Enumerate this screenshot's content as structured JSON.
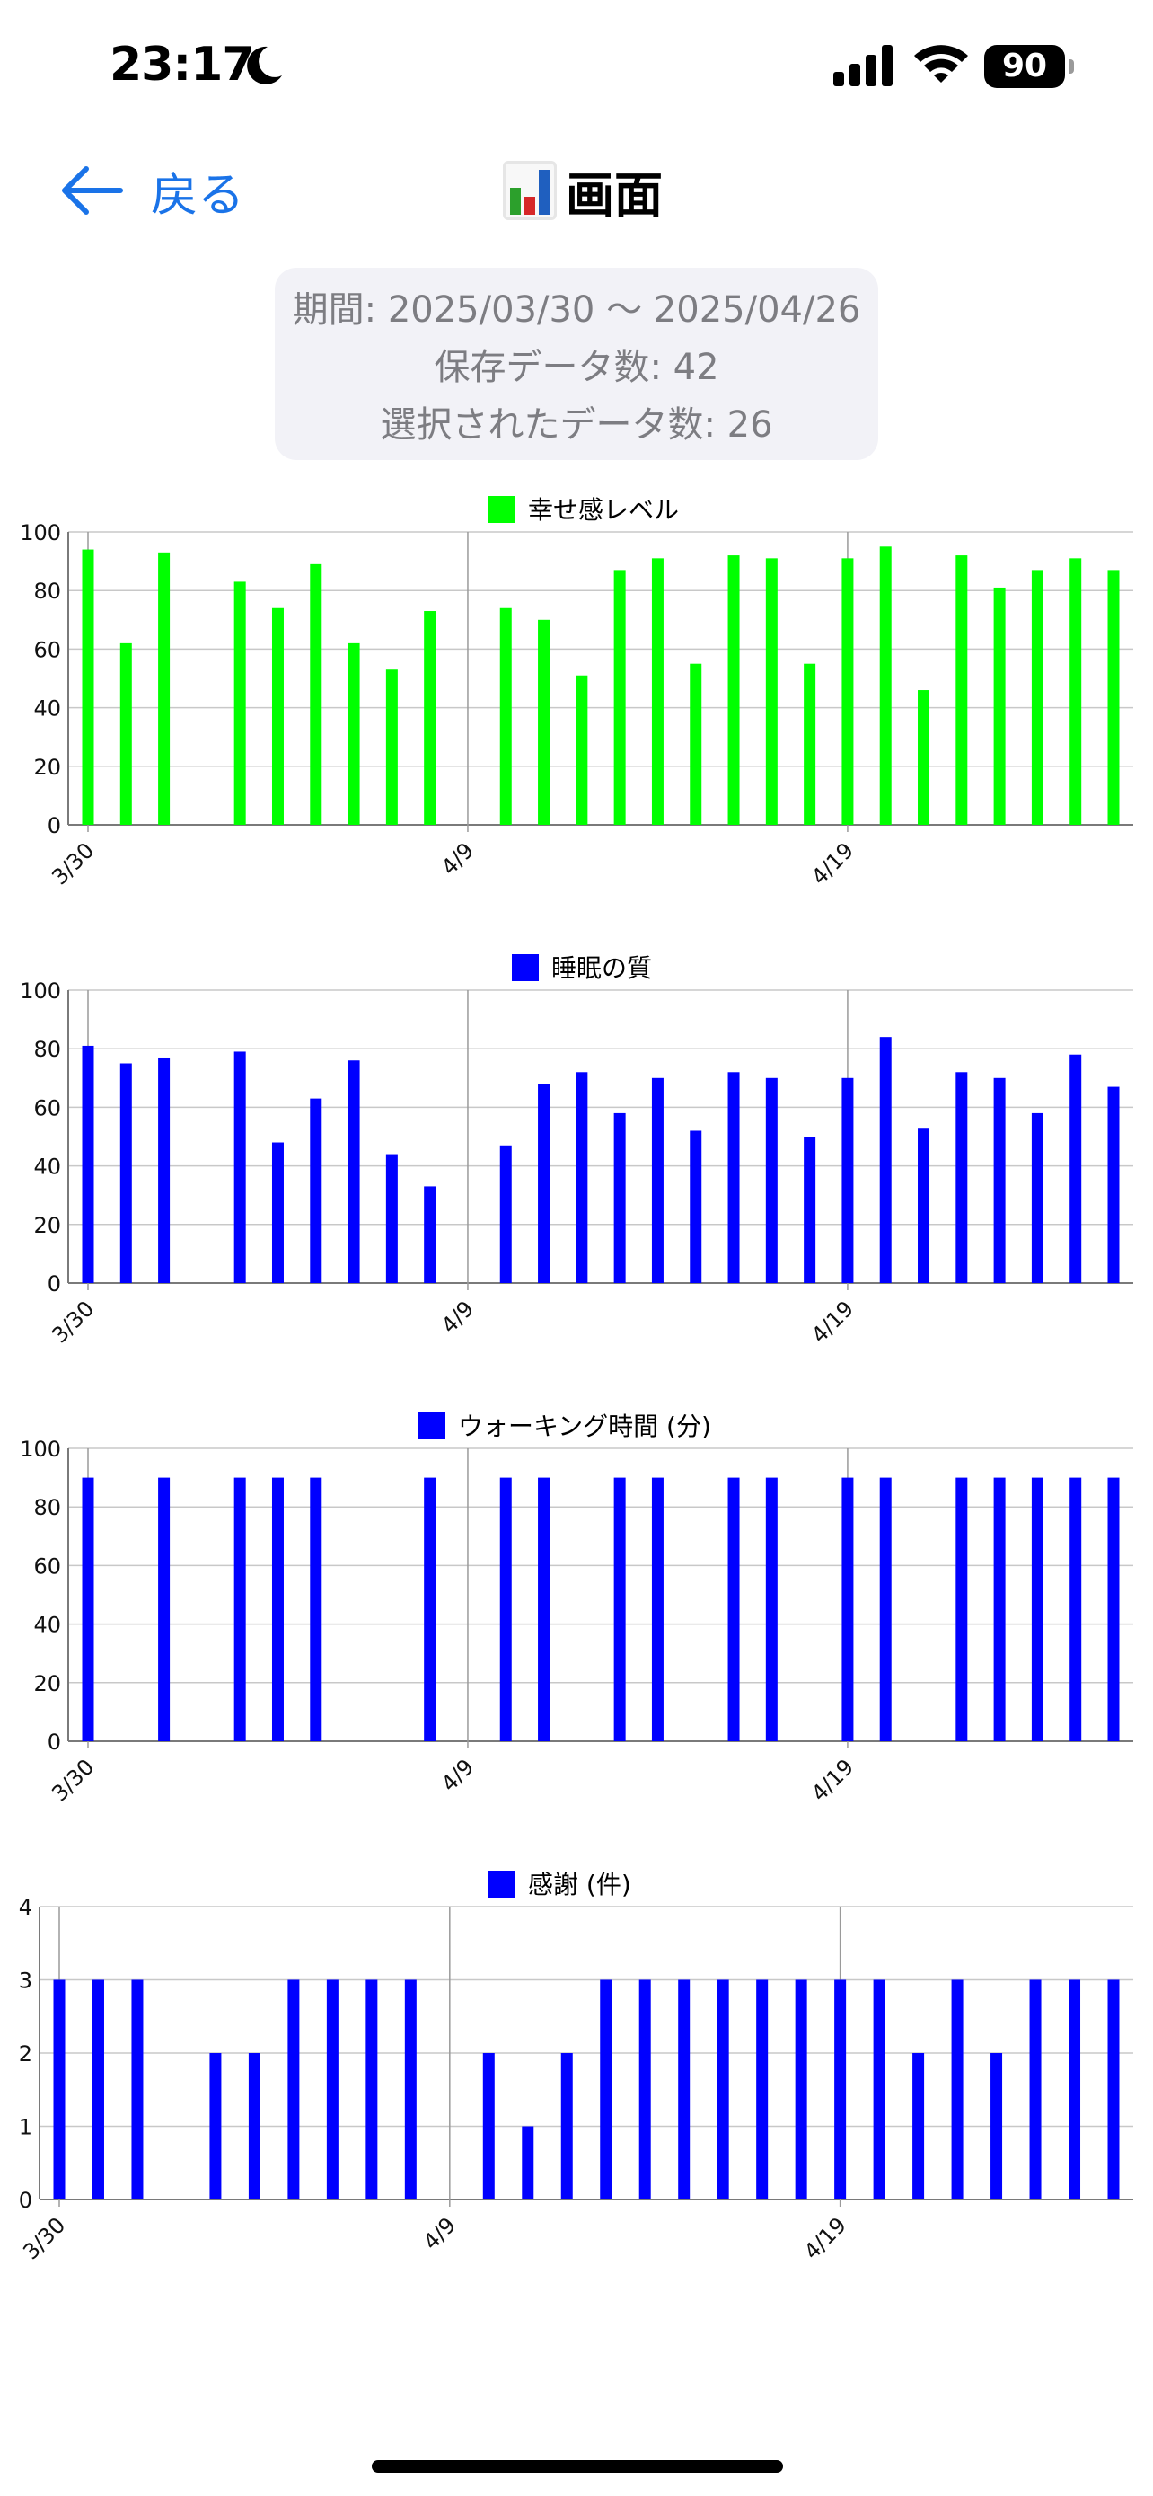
{
  "status_bar": {
    "time": "23:17",
    "battery": "90"
  },
  "nav": {
    "back_label": "戻る",
    "title": "画面",
    "title_icon": "bar-chart-icon"
  },
  "summary": {
    "period": "期間: 2025/03/30 〜 2025/04/26",
    "saved_count": "保存データ数: 42",
    "selected_count": "選択されたデータ数: 26"
  },
  "chart_data": [
    {
      "type": "bar",
      "title": "幸せ感レベル",
      "color": "#00ff00",
      "ylim": [
        0,
        100
      ],
      "yticks": [
        0,
        20,
        40,
        60,
        80,
        100
      ],
      "xlim": [
        "2025-03-30",
        "2025-04-26"
      ],
      "xticks": [
        "3/30",
        "4/9",
        "4/19"
      ],
      "grid": true,
      "legend": "top-center",
      "series": [
        {
          "values": [
            [
              "2025-03-30",
              94
            ],
            [
              "2025-03-31",
              62
            ],
            [
              "2025-04-01",
              93
            ],
            [
              "2025-04-03",
              83
            ],
            [
              "2025-04-04",
              74
            ],
            [
              "2025-04-05",
              89
            ],
            [
              "2025-04-06",
              62
            ],
            [
              "2025-04-07",
              53
            ],
            [
              "2025-04-08",
              73
            ],
            [
              "2025-04-10",
              74
            ],
            [
              "2025-04-11",
              70
            ],
            [
              "2025-04-12",
              51
            ],
            [
              "2025-04-13",
              87
            ],
            [
              "2025-04-14",
              91
            ],
            [
              "2025-04-15",
              55
            ],
            [
              "2025-04-16",
              92
            ],
            [
              "2025-04-17",
              91
            ],
            [
              "2025-04-18",
              55
            ],
            [
              "2025-04-19",
              91
            ],
            [
              "2025-04-20",
              95
            ],
            [
              "2025-04-21",
              46
            ],
            [
              "2025-04-22",
              92
            ],
            [
              "2025-04-23",
              81
            ],
            [
              "2025-04-24",
              87
            ],
            [
              "2025-04-25",
              91
            ],
            [
              "2025-04-26",
              87
            ]
          ]
        }
      ]
    },
    {
      "type": "bar",
      "title": "睡眠の質",
      "color": "#0000ff",
      "ylim": [
        0,
        100
      ],
      "yticks": [
        0,
        20,
        40,
        60,
        80,
        100
      ],
      "xlim": [
        "2025-03-30",
        "2025-04-26"
      ],
      "xticks": [
        "3/30",
        "4/9",
        "4/19"
      ],
      "grid": true,
      "legend": "top-center",
      "series": [
        {
          "values": [
            [
              "2025-03-30",
              81
            ],
            [
              "2025-03-31",
              75
            ],
            [
              "2025-04-01",
              77
            ],
            [
              "2025-04-03",
              79
            ],
            [
              "2025-04-04",
              48
            ],
            [
              "2025-04-05",
              63
            ],
            [
              "2025-04-06",
              76
            ],
            [
              "2025-04-07",
              44
            ],
            [
              "2025-04-08",
              33
            ],
            [
              "2025-04-10",
              47
            ],
            [
              "2025-04-11",
              68
            ],
            [
              "2025-04-12",
              72
            ],
            [
              "2025-04-13",
              58
            ],
            [
              "2025-04-14",
              70
            ],
            [
              "2025-04-15",
              52
            ],
            [
              "2025-04-16",
              72
            ],
            [
              "2025-04-17",
              70
            ],
            [
              "2025-04-18",
              50
            ],
            [
              "2025-04-19",
              70
            ],
            [
              "2025-04-20",
              84
            ],
            [
              "2025-04-21",
              53
            ],
            [
              "2025-04-22",
              72
            ],
            [
              "2025-04-23",
              70
            ],
            [
              "2025-04-24",
              58
            ],
            [
              "2025-04-25",
              78
            ],
            [
              "2025-04-26",
              67
            ]
          ]
        }
      ]
    },
    {
      "type": "bar",
      "title": "ウォーキング時間 (分)",
      "color": "#0000ff",
      "ylim": [
        0,
        100
      ],
      "yticks": [
        0,
        20,
        40,
        60,
        80,
        100
      ],
      "xlim": [
        "2025-03-30",
        "2025-04-26"
      ],
      "xticks": [
        "3/30",
        "4/9",
        "4/19"
      ],
      "grid": true,
      "legend": "top-center",
      "series": [
        {
          "values": [
            [
              "2025-03-30",
              90
            ],
            [
              "2025-04-01",
              90
            ],
            [
              "2025-04-03",
              90
            ],
            [
              "2025-04-04",
              90
            ],
            [
              "2025-04-05",
              90
            ],
            [
              "2025-04-08",
              90
            ],
            [
              "2025-04-10",
              90
            ],
            [
              "2025-04-11",
              90
            ],
            [
              "2025-04-13",
              90
            ],
            [
              "2025-04-14",
              90
            ],
            [
              "2025-04-16",
              90
            ],
            [
              "2025-04-17",
              90
            ],
            [
              "2025-04-19",
              90
            ],
            [
              "2025-04-20",
              90
            ],
            [
              "2025-04-22",
              90
            ],
            [
              "2025-04-23",
              90
            ],
            [
              "2025-04-24",
              90
            ],
            [
              "2025-04-25",
              90
            ],
            [
              "2025-04-26",
              90
            ]
          ]
        }
      ]
    },
    {
      "type": "bar",
      "title": "感謝 (件)",
      "color": "#0000ff",
      "ylim": [
        0,
        4
      ],
      "yticks": [
        0,
        1,
        2,
        3,
        4
      ],
      "xlim": [
        "2025-03-30",
        "2025-04-26"
      ],
      "xticks": [
        "3/30",
        "4/9",
        "4/19"
      ],
      "grid": true,
      "legend": "top-center",
      "series": [
        {
          "values": [
            [
              "2025-03-30",
              3
            ],
            [
              "2025-03-31",
              3
            ],
            [
              "2025-04-01",
              3
            ],
            [
              "2025-04-03",
              2
            ],
            [
              "2025-04-04",
              2
            ],
            [
              "2025-04-05",
              3
            ],
            [
              "2025-04-06",
              3
            ],
            [
              "2025-04-07",
              3
            ],
            [
              "2025-04-08",
              3
            ],
            [
              "2025-04-10",
              2
            ],
            [
              "2025-04-11",
              1
            ],
            [
              "2025-04-12",
              2
            ],
            [
              "2025-04-13",
              3
            ],
            [
              "2025-04-14",
              3
            ],
            [
              "2025-04-15",
              3
            ],
            [
              "2025-04-16",
              3
            ],
            [
              "2025-04-17",
              3
            ],
            [
              "2025-04-18",
              3
            ],
            [
              "2025-04-19",
              3
            ],
            [
              "2025-04-20",
              3
            ],
            [
              "2025-04-21",
              2
            ],
            [
              "2025-04-22",
              3
            ],
            [
              "2025-04-23",
              2
            ],
            [
              "2025-04-24",
              3
            ],
            [
              "2025-04-25",
              3
            ],
            [
              "2025-04-26",
              3
            ]
          ]
        }
      ]
    }
  ]
}
